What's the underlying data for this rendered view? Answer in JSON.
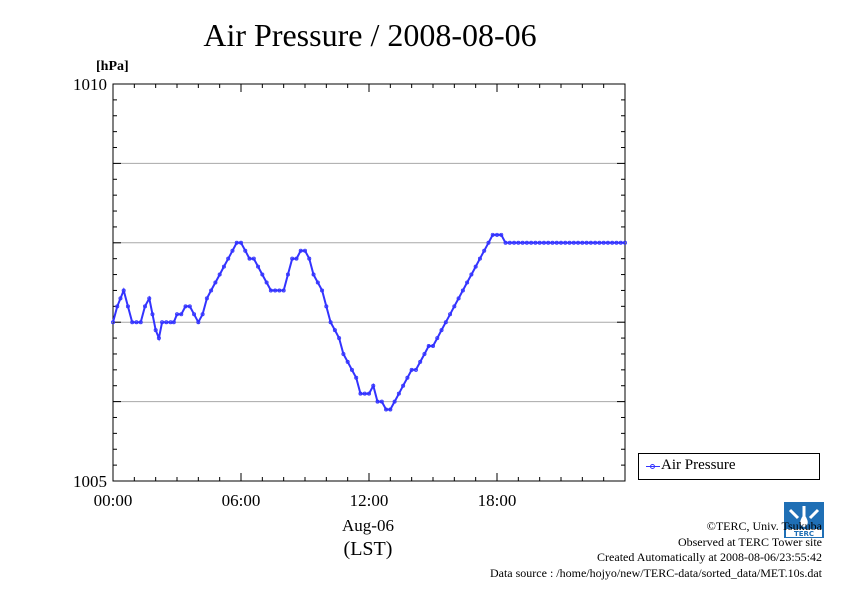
{
  "chart_data": {
    "type": "scatter",
    "title": "Air Pressure / 2008-08-06",
    "yunit": "[hPa]",
    "ylim": [
      1005,
      1010
    ],
    "y_tick_labels": [
      "1010",
      "1005"
    ],
    "xlim_hours": [
      0,
      24
    ],
    "x_tick_labels": [
      "00:00",
      "06:00",
      "12:00",
      "18:00"
    ],
    "x_date_label": "Aug-06",
    "x_zone_label": "(LST)",
    "grid": true,
    "legend_position": "bottom-right-outside",
    "series": [
      {
        "name": "Air Pressure",
        "color": "#3333ff",
        "hours": [
          0.0,
          0.2,
          0.35,
          0.5,
          0.7,
          0.9,
          1.1,
          1.3,
          1.5,
          1.7,
          1.85,
          2.0,
          2.15,
          2.3,
          2.5,
          2.7,
          2.85,
          3.0,
          3.2,
          3.4,
          3.6,
          3.8,
          4.0,
          4.2,
          4.4,
          4.6,
          4.8,
          5.0,
          5.2,
          5.4,
          5.6,
          5.8,
          6.0,
          6.2,
          6.4,
          6.6,
          6.8,
          7.0,
          7.2,
          7.4,
          7.6,
          7.8,
          8.0,
          8.2,
          8.4,
          8.6,
          8.8,
          9.0,
          9.2,
          9.4,
          9.6,
          9.8,
          10.0,
          10.2,
          10.4,
          10.6,
          10.8,
          11.0,
          11.2,
          11.4,
          11.6,
          11.8,
          12.0,
          12.2,
          12.4,
          12.6,
          12.8,
          13.0,
          13.2,
          13.4,
          13.6,
          13.8,
          14.0,
          14.2,
          14.4,
          14.6,
          14.8,
          15.0,
          15.2,
          15.4,
          15.6,
          15.8,
          16.0,
          16.2,
          16.4,
          16.6,
          16.8,
          17.0,
          17.2,
          17.4,
          17.6,
          17.8,
          18.0,
          18.2,
          18.4,
          18.6,
          18.8,
          19.0,
          19.2,
          19.4,
          19.6,
          19.8,
          20.0,
          20.2,
          20.4,
          20.6,
          20.8,
          21.0,
          21.2,
          21.4,
          21.6,
          21.8,
          22.0,
          22.2,
          22.4,
          22.6,
          22.8,
          23.0,
          23.2,
          23.4,
          23.6,
          23.8,
          24.0
        ],
        "values": [
          1007.0,
          1007.2,
          1007.3,
          1007.4,
          1007.2,
          1007.0,
          1007.0,
          1007.0,
          1007.2,
          1007.3,
          1007.1,
          1006.9,
          1006.8,
          1007.0,
          1007.0,
          1007.0,
          1007.0,
          1007.1,
          1007.1,
          1007.2,
          1007.2,
          1007.1,
          1007.0,
          1007.1,
          1007.3,
          1007.4,
          1007.5,
          1007.6,
          1007.7,
          1007.8,
          1007.9,
          1008.0,
          1008.0,
          1007.9,
          1007.8,
          1007.8,
          1007.7,
          1007.6,
          1007.5,
          1007.4,
          1007.4,
          1007.4,
          1007.4,
          1007.6,
          1007.8,
          1007.8,
          1007.9,
          1007.9,
          1007.8,
          1007.6,
          1007.5,
          1007.4,
          1007.2,
          1007.0,
          1006.9,
          1006.8,
          1006.6,
          1006.5,
          1006.4,
          1006.3,
          1006.1,
          1006.1,
          1006.1,
          1006.2,
          1006.0,
          1006.0,
          1005.9,
          1005.9,
          1006.0,
          1006.1,
          1006.2,
          1006.3,
          1006.4,
          1006.4,
          1006.5,
          1006.6,
          1006.7,
          1006.7,
          1006.8,
          1006.9,
          1007.0,
          1007.1,
          1007.2,
          1007.3,
          1007.4,
          1007.5,
          1007.6,
          1007.7,
          1007.8,
          1007.9,
          1008.0,
          1008.1,
          1008.1,
          1008.1,
          1008.0,
          1008.0,
          1008.0,
          1008.0,
          1008.0,
          1008.0,
          1008.0,
          1008.0,
          1008.0,
          1008.0,
          1008.0,
          1008.0,
          1008.0,
          1008.0,
          1008.0,
          1008.0,
          1008.0,
          1008.0,
          1008.0,
          1008.0,
          1008.0,
          1008.0,
          1008.0,
          1008.0,
          1008.0,
          1008.0,
          1008.0,
          1008.0,
          1008.0
        ]
      }
    ]
  },
  "credits": {
    "line1": "©TERC, Univ. Tsukuba",
    "line2": "Observed at TERC Tower site",
    "line3": "Created Automatically at 2008-08-06/23:55:42",
    "line4": "Data source : /home/hojyo/new/TERC-data/sorted_data/MET.10s.dat"
  },
  "logo": {
    "text": "TERC"
  }
}
